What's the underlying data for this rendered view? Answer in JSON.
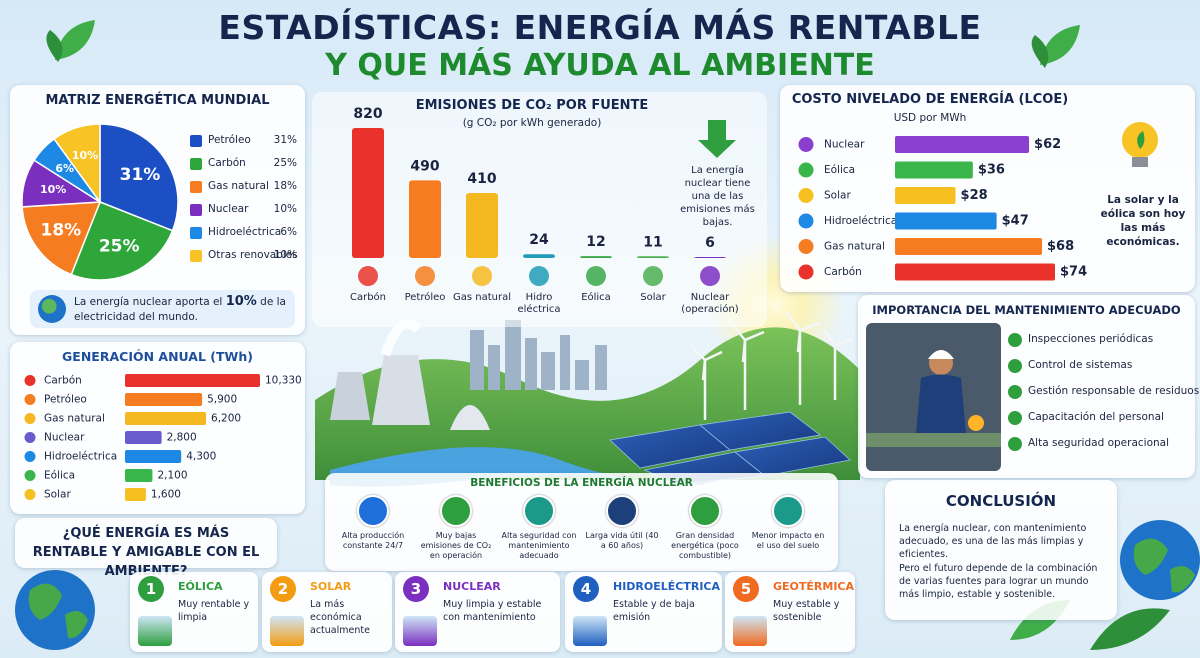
{
  "header": {
    "title_line1": "ESTADÍSTICAS: ENERGÍA MÁS RENTABLE",
    "title_line2": "Y QUE MÁS AYUDA AL AMBIENTE"
  },
  "chart_data": [
    {
      "type": "pie",
      "title": "MATRIZ ENERGÉTICA MUNDIAL",
      "categories": [
        "Petróleo",
        "Carbón",
        "Gas natural",
        "Nuclear",
        "Hidroeléctrica",
        "Otras renovables"
      ],
      "values": [
        31,
        25,
        18,
        10,
        6,
        10
      ],
      "value_labels": [
        "31%",
        "25%",
        "18%",
        "10%",
        "6%",
        "10%"
      ],
      "colors": [
        "#1d4fc4",
        "#2ea63a",
        "#f57c20",
        "#7b2fbf",
        "#1e88e5",
        "#f7c325"
      ]
    },
    {
      "type": "bar",
      "title": "EMISIONES DE CO₂ POR FUENTE",
      "subtitle": "(g CO₂ por kWh generado)",
      "categories": [
        "Carbón",
        "Petróleo",
        "Gas natural",
        "Hidro eléctrica",
        "Eólica",
        "Solar",
        "Nuclear (operación)"
      ],
      "values": [
        820,
        490,
        410,
        24,
        12,
        11,
        6
      ],
      "colors": [
        "#e8322b",
        "#f57c20",
        "#f5b820",
        "#1f9bb5",
        "#3aa84a",
        "#4caf50",
        "#7b2fbf"
      ],
      "annotation": "La energía nuclear tiene una de las emisiones más bajas."
    },
    {
      "type": "hbar",
      "title": "COSTO NIVELADO DE ENERGÍA (LCOE)",
      "subtitle": "USD por MWh",
      "categories": [
        "Nuclear",
        "Eólica",
        "Solar",
        "Hidroeléctrica",
        "Gas natural",
        "Carbón"
      ],
      "values": [
        62,
        36,
        28,
        47,
        68,
        74
      ],
      "value_labels": [
        "$62",
        "$36",
        "$28",
        "$47",
        "$68",
        "$74"
      ],
      "colors": [
        "#8a3fd1",
        "#3ab54a",
        "#f5c020",
        "#1e88e5",
        "#f57c20",
        "#e8322b"
      ],
      "annotation": "La solar y la eólica son hoy las más económicas."
    },
    {
      "type": "hbar",
      "title": "GENERACIÓN ANUAL (TWh)",
      "categories": [
        "Carbón",
        "Petróleo",
        "Gas natural",
        "Nuclear",
        "Hidroeléctrica",
        "Eólica",
        "Solar"
      ],
      "values": [
        10330,
        5900,
        6200,
        2800,
        4300,
        2100,
        1600
      ],
      "value_labels": [
        "10,330",
        "5,900",
        "6,200",
        "2,800",
        "4,300",
        "2,100",
        "1,600"
      ],
      "colors": [
        "#e8322b",
        "#f57c20",
        "#f5b820",
        "#6a5acd",
        "#1e88e5",
        "#3ab54a",
        "#f5c020"
      ]
    }
  ],
  "nuclear_note": {
    "before": "La energía nuclear aporta el",
    "highlight": "10%",
    "after": "de la electricidad del mundo."
  },
  "maintenance": {
    "title": "IMPORTANCIA DEL MANTENIMIENTO ADECUADO",
    "items": [
      "Inspecciones periódicas",
      "Control de sistemas",
      "Gestión responsable de residuos",
      "Capacitación del personal",
      "Alta seguridad operacional"
    ]
  },
  "benefits": {
    "title": "BENEFICIOS DE LA ENERGÍA NUCLEAR",
    "items": [
      "Alta producción constante 24/7",
      "Muy bajas emisiones de CO₂ en operación",
      "Alta seguridad con mantenimiento adecuado",
      "Larga vida útil (40 a 60 años)",
      "Gran densidad energética (poco combustible)",
      "Menor impacto en el uso del suelo"
    ],
    "colors": [
      "#1e6fd9",
      "#2e9e3e",
      "#1b9a8a",
      "#1d3f7a",
      "#2e9e3e",
      "#1b9a8a"
    ]
  },
  "question": "¿QUÉ ENERGÍA ES MÁS RENTABLE Y AMIGABLE CON EL AMBIENTE?",
  "ranking": [
    {
      "number": 1,
      "name": "EÓLICA",
      "description": "Muy rentable y limpia",
      "color": "#2e9e3e"
    },
    {
      "number": 2,
      "name": "SOLAR",
      "description": "La más económica actualmente",
      "color": "#f39c12"
    },
    {
      "number": 3,
      "name": "NUCLEAR",
      "description": "Muy limpia y estable con mantenimiento",
      "color": "#7b2fbf"
    },
    {
      "number": 4,
      "name": "HIDROELÉCTRICA",
      "description": "Estable y de baja emisión",
      "color": "#1f5fbf"
    },
    {
      "number": 5,
      "name": "GEOTÉRMICA",
      "description": "Muy estable y sostenible",
      "color": "#f06a1f"
    }
  ],
  "conclusion": {
    "title": "CONCLUSIÓN",
    "paragraphs": [
      "La energía nuclear, con mantenimiento adecuado, es una de las más limpias y eficientes.",
      "Pero el futuro depende de la combinación de varias fuentes para lograr un mundo más limpio, estable y sostenible."
    ]
  }
}
